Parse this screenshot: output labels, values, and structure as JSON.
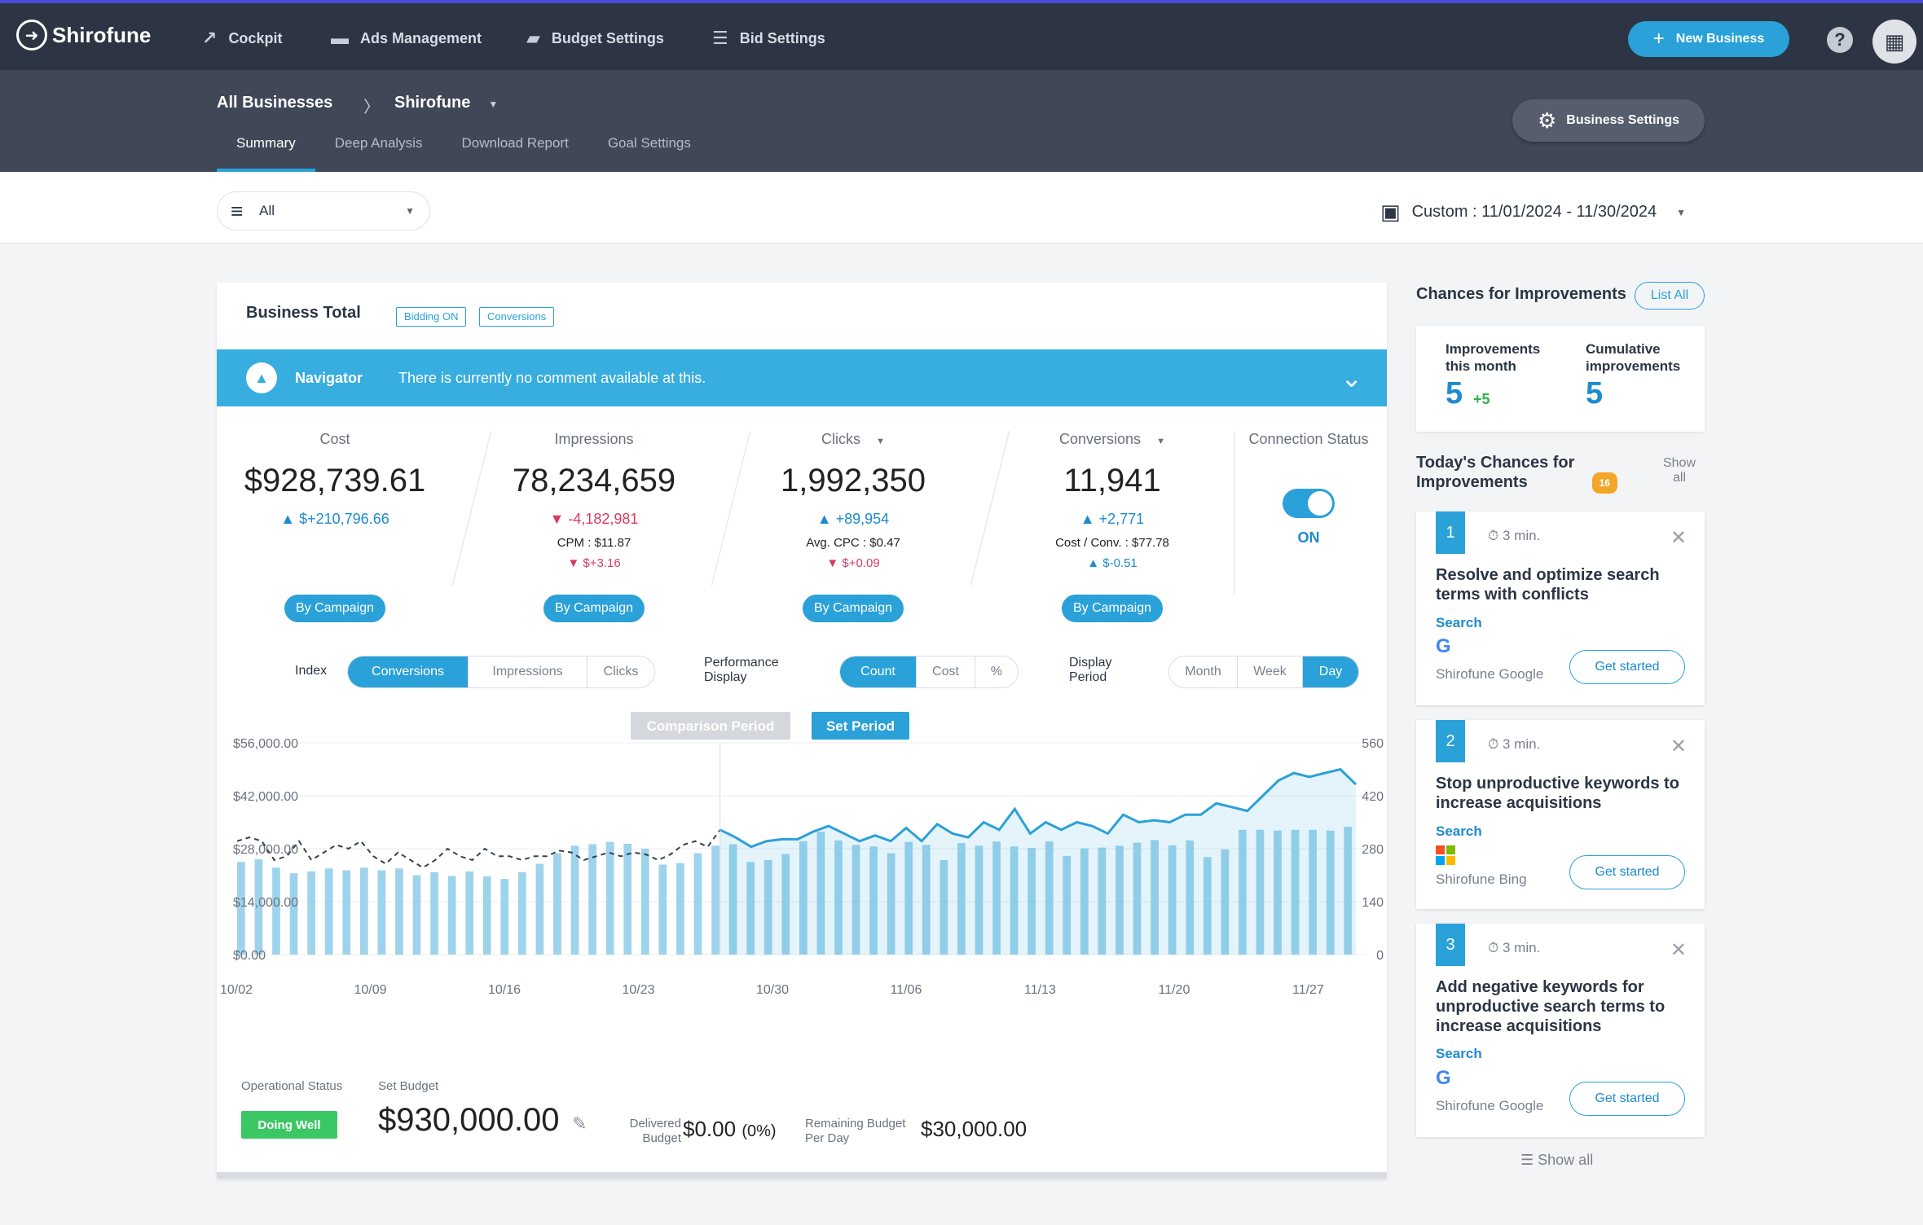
{
  "app": {
    "brand": "Shirofune"
  },
  "nav": [
    {
      "label": "Cockpit"
    },
    {
      "label": "Ads Management"
    },
    {
      "label": "Budget Settings"
    },
    {
      "label": "Bid Settings"
    }
  ],
  "header": {
    "new_business": "New Business",
    "help": "?"
  },
  "breadcrumb": {
    "root": "All Businesses",
    "current": "Shirofune"
  },
  "tabs": [
    {
      "label": "Summary"
    },
    {
      "label": "Deep Analysis"
    },
    {
      "label": "Download Report"
    },
    {
      "label": "Goal Settings"
    }
  ],
  "business_settings": "Business Settings",
  "filter": {
    "value": "All"
  },
  "date_range": "Custom : 11/01/2024 - 11/30/2024",
  "card": {
    "title": "Business Total",
    "chips": [
      "Bidding ON",
      "Conversions"
    ]
  },
  "navigator": {
    "label": "Navigator",
    "message": "There is currently no comment available at this."
  },
  "kpis": [
    {
      "label": "Cost",
      "value": "$928,739.61",
      "delta": "$+210,796.66",
      "dir": "up",
      "sub": "",
      "sub2": "",
      "sub2dir": ""
    },
    {
      "label": "Impressions",
      "value": "78,234,659",
      "delta": "-4,182,981",
      "dir": "dn",
      "sub": "CPM : $11.87",
      "sub2": "$+3.16",
      "sub2dir": "dn"
    },
    {
      "label": "Clicks",
      "value": "1,992,350",
      "delta": "+89,954",
      "dir": "up",
      "sub": "Avg. CPC : $0.47",
      "sub2": "$+0.09",
      "sub2dir": "dn"
    },
    {
      "label": "Conversions",
      "value": "11,941",
      "delta": "+2,771",
      "dir": "up",
      "sub": "Cost / Conv. : $77.78",
      "sub2": "$-0.51",
      "sub2dir": "up"
    }
  ],
  "by_campaign": "By Campaign",
  "connection": {
    "label": "Connection Status",
    "state": "ON"
  },
  "controls": {
    "index_label": "Index",
    "index_options": [
      "Conversions",
      "Impressions",
      "Clicks"
    ],
    "index_selected": "Conversions",
    "perf_label": "Performance Display",
    "perf_options": [
      "Count",
      "Cost",
      "%"
    ],
    "perf_selected": "Count",
    "period_label": "Display Period",
    "period_options": [
      "Month",
      "Week",
      "Day"
    ],
    "period_selected": "Day"
  },
  "chart_data": {
    "type": "bar",
    "legend": [
      "Comparison Period",
      "Set Period"
    ],
    "y_left_ticks": [
      "$56,000.00",
      "$42,000.00",
      "$28,000.00",
      "$14,000.00",
      "$0.00"
    ],
    "y_right_ticks": [
      "560",
      "420",
      "280",
      "140",
      "0"
    ],
    "x_ticks": [
      "10/02",
      "10/09",
      "10/16",
      "10/23",
      "10/30",
      "11/06",
      "11/13",
      "11/20",
      "11/27"
    ],
    "ylim_left": [
      0,
      56000
    ],
    "ylim_right": [
      0,
      560
    ],
    "series": [
      {
        "name": "Cost",
        "axis": "left",
        "values": [
          24500,
          25200,
          23000,
          21500,
          22000,
          22800,
          22300,
          23000,
          22300,
          22800,
          21000,
          21800,
          20800,
          22000,
          20700,
          20000,
          21800,
          24000,
          26800,
          28800,
          29200,
          29800,
          29300,
          28000,
          23800,
          24200,
          26800,
          28800,
          29200,
          24500,
          25000,
          26600,
          30000,
          32500,
          30200,
          29000,
          28600,
          26800,
          29800,
          29000,
          25000,
          29500,
          28800,
          29900,
          28600,
          28200,
          29900,
          26100,
          28100,
          28300,
          28800,
          29600,
          30300,
          28900,
          30200,
          25800,
          27800,
          33000,
          33000,
          32800,
          33000,
          33000,
          32800,
          33800
        ]
      },
      {
        "name": "Conversions (comparison)",
        "axis": "right",
        "values": [
          300,
          310,
          300,
          250,
          260,
          300,
          250,
          270,
          290,
          280,
          300,
          260,
          240,
          270,
          250,
          230,
          250,
          280,
          260,
          250,
          280,
          260,
          260,
          250,
          260,
          260,
          275,
          270,
          250,
          260,
          270,
          260,
          270,
          265,
          250,
          265,
          290,
          300,
          285,
          330
        ]
      },
      {
        "name": "Conversions",
        "axis": "right",
        "values": [
          330,
          310,
          285,
          300,
          305,
          305,
          325,
          340,
          320,
          300,
          315,
          300,
          335,
          300,
          345,
          320,
          310,
          350,
          330,
          385,
          320,
          350,
          330,
          350,
          340,
          320,
          370,
          350,
          355,
          350,
          370,
          370,
          400,
          390,
          380,
          420,
          460,
          480,
          470,
          480,
          490,
          450
        ]
      }
    ]
  },
  "footer": {
    "operational_status_label": "Operational Status",
    "status": "Doing Well",
    "set_budget_label": "Set Budget",
    "set_budget": "$930,000.00",
    "delivered_label": "Delivered Budget",
    "delivered": "$0.00",
    "delivered_pct": "(0%)",
    "remaining_label": "Remaining Budget Per Day",
    "remaining": "$30,000.00"
  },
  "sidebar": {
    "title": "Chances for Improvements",
    "list_all": "List All",
    "this_month_label": "Improvements this month",
    "this_month": "5",
    "this_month_plus": "+5",
    "cumulative_label": "Cumulative improvements",
    "cumulative": "5",
    "today_title": "Today's Chances for Improvements",
    "today_count": "16",
    "show_all_small": "Show all",
    "items": [
      {
        "num": "1",
        "time": "3 min.",
        "title": "Resolve and optimize search terms with conflicts",
        "category": "Search",
        "platform": "google",
        "account": "Shirofune Google",
        "action": "Get started"
      },
      {
        "num": "2",
        "time": "3 min.",
        "title": "Stop unproductive keywords to increase acquisitions",
        "category": "Search",
        "platform": "bing",
        "account": "Shirofune Bing",
        "action": "Get started"
      },
      {
        "num": "3",
        "time": "3 min.",
        "title": "Add negative keywords for unproductive search terms to increase acquisitions",
        "category": "Search",
        "platform": "google",
        "account": "Shirofune Google",
        "action": "Get started"
      }
    ],
    "show_all": "Show all"
  }
}
